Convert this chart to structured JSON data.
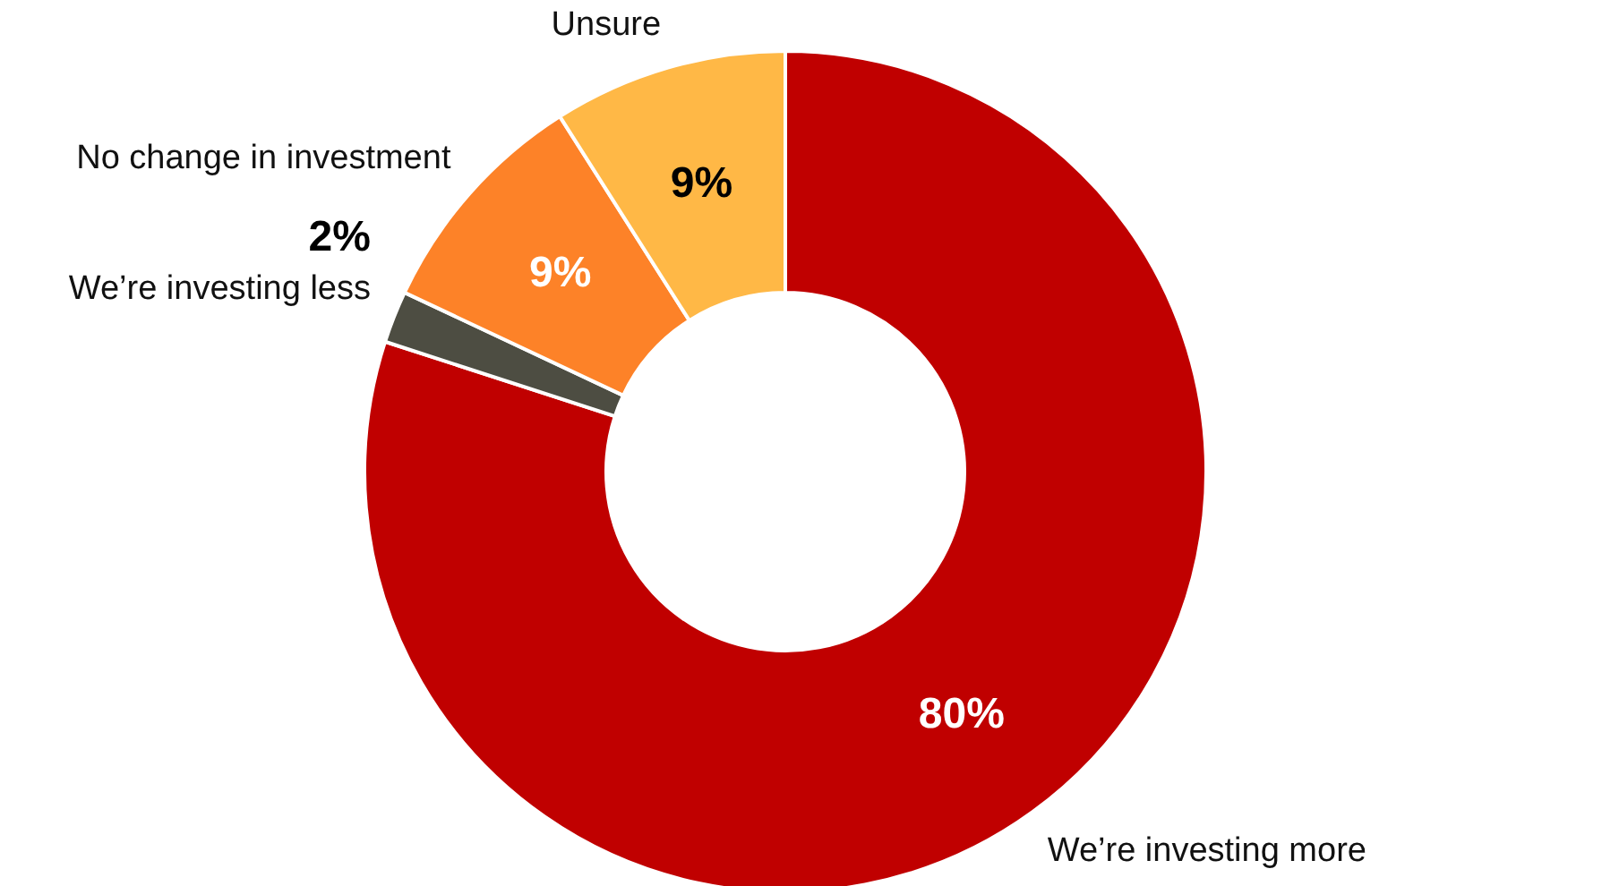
{
  "chart_data": {
    "type": "donut",
    "categories": [
      "We’re investing more",
      "We’re investing less",
      "No change in investment",
      "Unsure"
    ],
    "values": [
      80,
      2,
      9,
      9
    ],
    "colors": [
      "#c00000",
      "#4d4d42",
      "#fd8228",
      "#ffb846"
    ],
    "value_labels": [
      "80%",
      "2%",
      "9%",
      "9%"
    ]
  }
}
